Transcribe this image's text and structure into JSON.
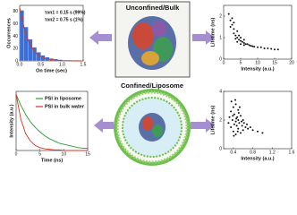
{
  "diagram": {
    "top_label": "Unconfined/Bulk",
    "bottom_label": "Confined/Liposome"
  },
  "chart_data": [
    {
      "type": "histogram",
      "xlabel": "On time (sec)",
      "ylabel": "Occurrences",
      "color": "#3a6fd8",
      "bins": [
        0,
        0.1,
        0.2,
        0.3,
        0.4,
        0.5,
        0.6,
        0.7,
        0.8,
        0.9,
        1.0,
        1.1,
        1.2,
        1.3,
        1.4,
        1.5
      ],
      "counts": [
        82,
        55,
        35,
        22,
        14,
        9,
        6,
        4,
        3,
        2,
        1,
        1,
        0,
        1,
        0
      ],
      "fit": {
        "color": "#e03020",
        "x": [
          0,
          0.1,
          0.2,
          0.3,
          0.4,
          0.5,
          0.6,
          0.8,
          1.0,
          1.2,
          1.5
        ],
        "values": [
          86,
          55,
          33,
          20,
          12,
          7,
          4,
          1.5,
          0.5,
          0.2,
          0
        ]
      },
      "annotations": [
        "τon1 = 0.15 s (99%)",
        "τon2 = 0.75 s (1%)"
      ],
      "xlim": [
        0,
        1.5
      ],
      "xticks": [
        {
          "value": 0,
          "label": "0.0"
        },
        0.5,
        {
          "value": 1,
          "label": "1.0"
        },
        1.5
      ],
      "ylim": [
        0,
        90
      ],
      "yticks": [
        0,
        20,
        40,
        60,
        80
      ]
    },
    {
      "type": "scatter",
      "xlabel": "Intensity (a.u.)",
      "ylabel": "Lifetime (ns)",
      "color": "#111",
      "x": [
        1.5,
        2,
        2.5,
        3,
        3,
        3.5,
        4,
        4,
        4.5,
        5,
        5,
        5.5,
        6,
        6,
        6.5,
        7,
        7.5,
        8,
        8.5,
        9,
        10,
        11,
        12,
        13,
        14,
        15,
        16,
        2,
        3,
        4,
        3.5,
        5,
        6,
        2.5,
        4.5
      ],
      "values": [
        2.1,
        1.8,
        1.6,
        1.4,
        1.2,
        1.1,
        1.0,
        1.3,
        0.9,
        0.85,
        1.0,
        0.8,
        0.75,
        0.9,
        0.7,
        0.7,
        0.65,
        0.62,
        0.6,
        0.58,
        0.55,
        0.55,
        0.5,
        0.5,
        0.48,
        0.45,
        0.45,
        1.5,
        1.7,
        0.8,
        0.95,
        0.7,
        0.65,
        1.9,
        1.1
      ],
      "xlim": [
        0,
        20
      ],
      "xticks": [
        0,
        5,
        10,
        15,
        20
      ],
      "ylim": [
        0,
        2.5
      ],
      "yticks": [
        0,
        1,
        2
      ]
    },
    {
      "type": "line",
      "xlabel": "Time (ns)",
      "ylabel": "Intensity (a.u.)",
      "x": [
        0,
        1,
        2,
        3,
        4,
        5,
        6,
        7,
        8,
        9,
        10,
        11,
        12,
        13,
        14,
        15
      ],
      "series": [
        {
          "name": "PSI in liposome",
          "color": "#2ca02c",
          "values": [
            1,
            0.8,
            0.64,
            0.51,
            0.41,
            0.33,
            0.26,
            0.21,
            0.17,
            0.13,
            0.11,
            0.09,
            0.07,
            0.05,
            0.04,
            0.04
          ]
        },
        {
          "name": "PSI in bulk water",
          "color": "#e03020",
          "values": [
            1,
            0.55,
            0.3,
            0.17,
            0.09,
            0.05,
            0.03,
            0.02,
            0.01,
            0.01,
            0,
            0,
            0,
            0,
            0,
            0
          ]
        }
      ],
      "xlim": [
        0,
        15
      ],
      "xticks": [
        0,
        5,
        10,
        15
      ],
      "ylim": [
        0,
        1.05
      ],
      "yticks": []
    },
    {
      "type": "scatter",
      "xlabel": "Intensity (a.u.)",
      "ylabel": "Lifetime (ns)",
      "color": "#111",
      "x": [
        0.3,
        0.32,
        0.35,
        0.35,
        0.38,
        0.4,
        0.4,
        0.42,
        0.42,
        0.45,
        0.45,
        0.45,
        0.48,
        0.5,
        0.5,
        0.5,
        0.52,
        0.55,
        0.55,
        0.58,
        0.6,
        0.6,
        0.62,
        0.65,
        0.68,
        0.7,
        0.75,
        0.8,
        0.9,
        1.0,
        0.36,
        0.44,
        0.47,
        0.53,
        0.57,
        0.41,
        0.49,
        0.39,
        0.51,
        0.46
      ],
      "values": [
        1.8,
        2.2,
        1.5,
        2.6,
        2.0,
        1.2,
        2.9,
        1.7,
        2.4,
        1.0,
        1.9,
        3.1,
        2.2,
        1.4,
        2.0,
        2.7,
        1.8,
        1.1,
        2.3,
        1.6,
        2.0,
        1.3,
        1.8,
        1.5,
        1.7,
        1.4,
        1.5,
        1.3,
        1.2,
        1.1,
        3.3,
        3.4,
        1.6,
        2.9,
        1.9,
        0.9,
        1.2,
        2.3,
        2.5,
        2.1
      ],
      "xlim": [
        0.2,
        1.6
      ],
      "xticks": [
        0.4,
        0.8,
        1.2,
        1.6
      ],
      "ylim": [
        0,
        4
      ],
      "yticks": [
        0,
        2,
        4
      ]
    }
  ]
}
